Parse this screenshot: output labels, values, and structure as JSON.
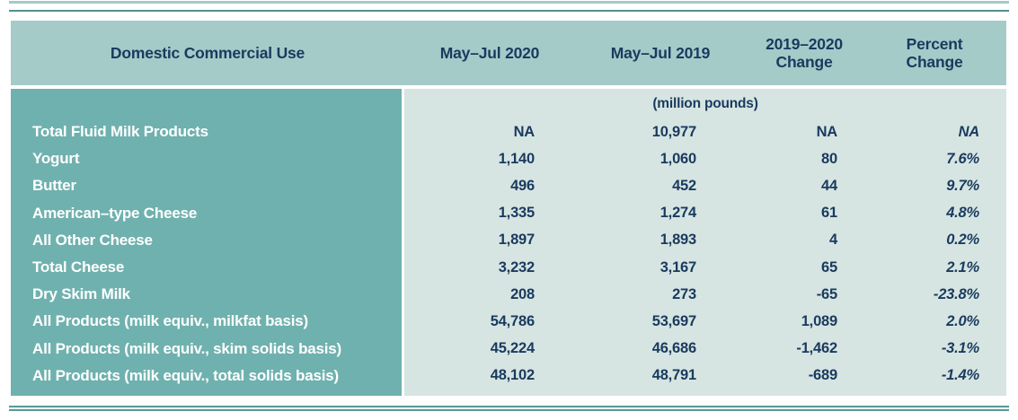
{
  "table": {
    "header": {
      "label": "Domestic Commercial Use",
      "col_2020": "May–Jul 2020",
      "col_2019": "May–Jul 2019",
      "col_change": {
        "line1": "2019–2020",
        "line2": "Change"
      },
      "col_percent": {
        "line1": "Percent",
        "line2": "Change"
      }
    },
    "units_note": "(million pounds)",
    "rows": [
      {
        "label": "Total Fluid Milk Products",
        "v2020": "NA",
        "v2019": "10,977",
        "change": "NA",
        "percent": "NA"
      },
      {
        "label": "Yogurt",
        "v2020": "1,140",
        "v2019": "1,060",
        "change": "80",
        "percent": "7.6%"
      },
      {
        "label": "Butter",
        "v2020": "496",
        "v2019": "452",
        "change": "44",
        "percent": "9.7%"
      },
      {
        "label": "American–type Cheese",
        "v2020": "1,335",
        "v2019": "1,274",
        "change": "61",
        "percent": "4.8%"
      },
      {
        "label": "All Other Cheese",
        "v2020": "1,897",
        "v2019": "1,893",
        "change": "4",
        "percent": "0.2%"
      },
      {
        "label": "Total Cheese",
        "v2020": "3,232",
        "v2019": "3,167",
        "change": "65",
        "percent": "2.1%"
      },
      {
        "label": "Dry Skim Milk",
        "v2020": "208",
        "v2019": "273",
        "change": "-65",
        "percent": "-23.8%"
      },
      {
        "label": "All Products (milk equiv., milkfat basis)",
        "v2020": "54,786",
        "v2019": "53,697",
        "change": "1,089",
        "percent": "2.0%"
      },
      {
        "label": "All Products (milk equiv., skim solids basis)",
        "v2020": "45,224",
        "v2019": "46,686",
        "change": "-1,462",
        "percent": "-3.1%"
      },
      {
        "label": "All Products (milk equiv., total solids basis)",
        "v2020": "48,102",
        "v2019": "48,791",
        "change": "-689",
        "percent": "-1.4%"
      }
    ],
    "colors": {
      "header_bg": "#a5cbc9",
      "label_column_bg": "#6fb1ae",
      "data_bg": "#d6e5e2",
      "text_navy": "#1a3a5e",
      "text_white": "#ffffff",
      "rule_teal": "#4f918e"
    }
  },
  "chart_data": {
    "type": "table",
    "title": "Domestic Commercial Use",
    "units": "(million pounds)",
    "columns": [
      "Domestic Commercial Use",
      "May–Jul 2020",
      "May–Jul 2019",
      "2019–2020 Change",
      "Percent Change"
    ],
    "rows": [
      [
        "Total Fluid Milk Products",
        "NA",
        "10,977",
        "NA",
        "NA"
      ],
      [
        "Yogurt",
        "1,140",
        "1,060",
        "80",
        "7.6%"
      ],
      [
        "Butter",
        "496",
        "452",
        "44",
        "9.7%"
      ],
      [
        "American–type Cheese",
        "1,335",
        "1,274",
        "61",
        "4.8%"
      ],
      [
        "All Other Cheese",
        "1,897",
        "1,893",
        "4",
        "0.2%"
      ],
      [
        "Total Cheese",
        "3,232",
        "3,167",
        "65",
        "2.1%"
      ],
      [
        "Dry Skim Milk",
        "208",
        "273",
        "-65",
        "-23.8%"
      ],
      [
        "All Products (milk equiv., milkfat basis)",
        "54,786",
        "53,697",
        "1,089",
        "2.0%"
      ],
      [
        "All Products (milk equiv., skim solids basis)",
        "45,224",
        "46,686",
        "-1,462",
        "-3.1%"
      ],
      [
        "All Products (milk equiv., total solids basis)",
        "48,102",
        "48,791",
        "-689",
        "-1.4%"
      ]
    ]
  }
}
